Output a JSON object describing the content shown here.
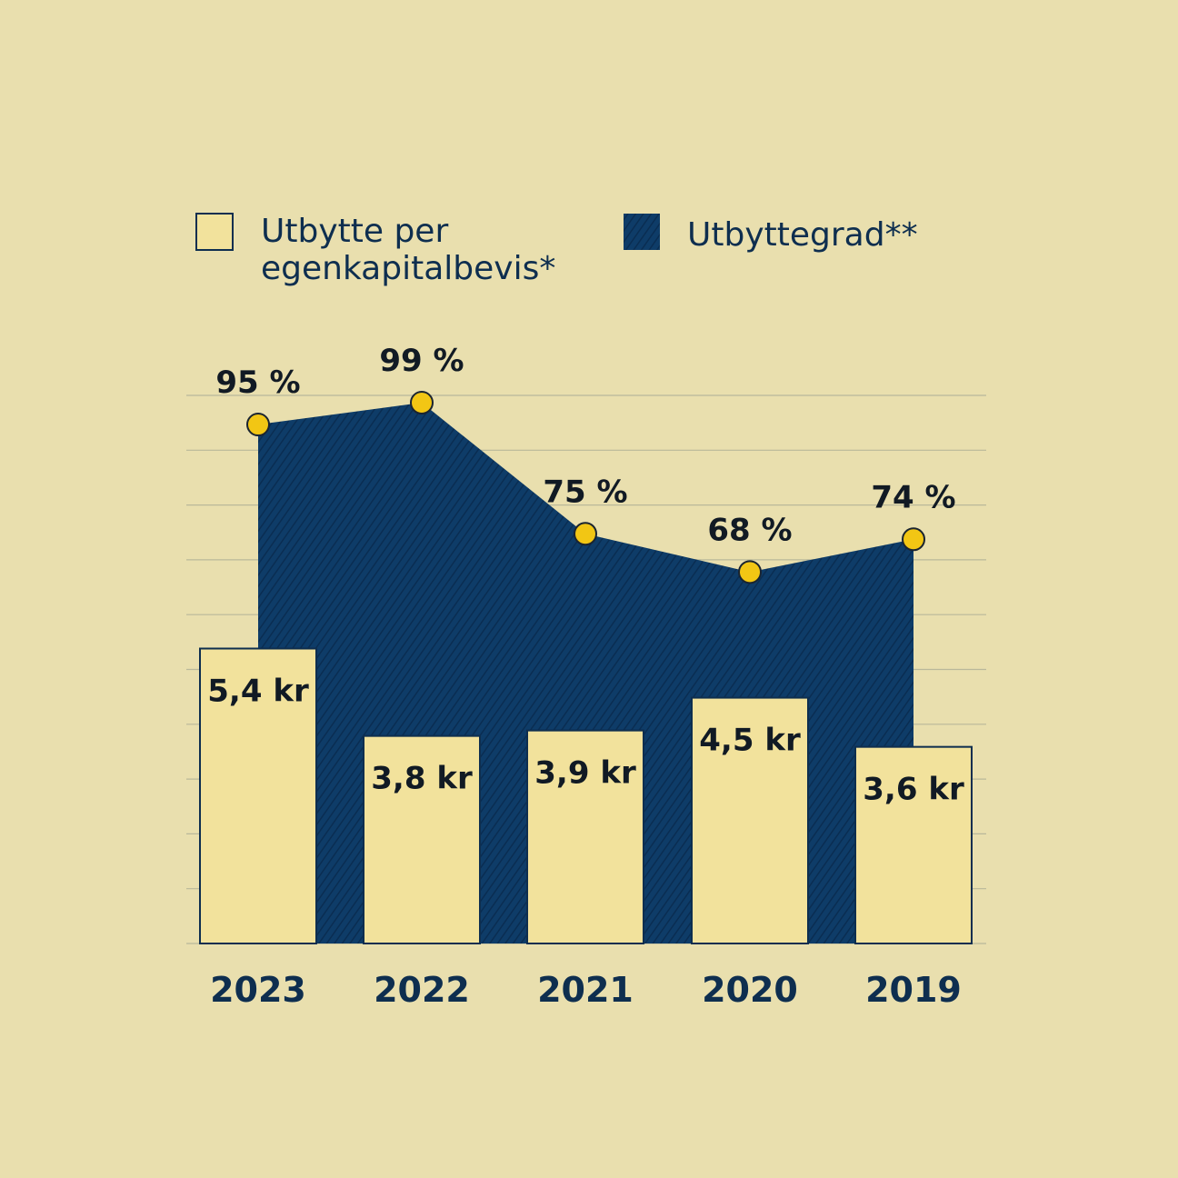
{
  "legend": {
    "bar_label_line1": "Utbytte per",
    "bar_label_line2": "egenkapitalbevis*",
    "area_label": "Utbyttegrad**"
  },
  "colors": {
    "background": "#e9dfae",
    "bar_fill": "#f2e29c",
    "bar_stroke": "#0e2e4f",
    "area_fill": "#0e3c68",
    "marker_fill": "#f2c614",
    "text_dark": "#0e2e4f"
  },
  "chart_data": {
    "type": "bar",
    "categories": [
      "2023",
      "2022",
      "2021",
      "2020",
      "2019"
    ],
    "series": [
      {
        "name": "Utbytte per egenkapitalbevis*",
        "type": "bar",
        "values": [
          5.4,
          3.8,
          3.9,
          4.5,
          3.6
        ],
        "labels": [
          "5,4 kr",
          "3,8 kr",
          "3,9 kr",
          "4,5 kr",
          "3,6 kr"
        ]
      },
      {
        "name": "Utbyttegrad**",
        "type": "area",
        "values": [
          95,
          99,
          75,
          68,
          74
        ],
        "labels": [
          "95 %",
          "99 %",
          "75 %",
          "68 %",
          "74 %"
        ]
      }
    ],
    "ylim_bar": [
      0,
      11
    ],
    "ylim_area": [
      0,
      100
    ],
    "grid": true,
    "legend_position": "top"
  }
}
